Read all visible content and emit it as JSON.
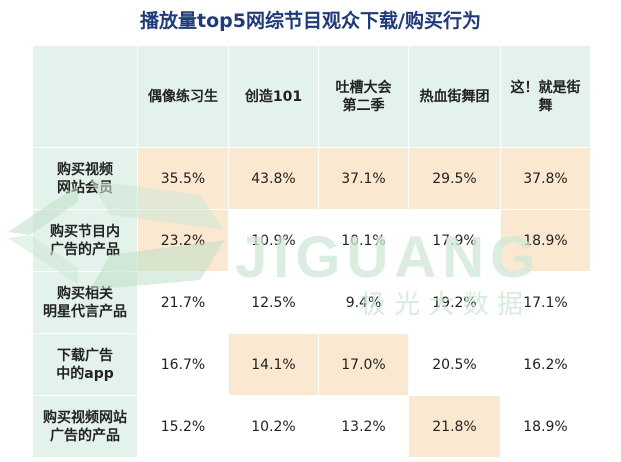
{
  "chart_data": {
    "type": "table",
    "title": "播放量top5网综节目观众下载/购买行为",
    "columns": [
      "偶像练习生",
      "创造101",
      "吐槽大会\n第二季",
      "热血街舞团",
      "这！就是街\n舞"
    ],
    "rows": [
      {
        "label": "购买视频\n网站会员",
        "values": [
          "35.5%",
          "43.8%",
          "37.1%",
          "29.5%",
          "37.8%"
        ],
        "highlight": [
          true,
          true,
          true,
          true,
          true
        ]
      },
      {
        "label": "购买节目内\n广告的产品",
        "values": [
          "23.2%",
          "10.9%",
          "10.1%",
          "17.9%",
          "18.9%"
        ],
        "highlight": [
          true,
          false,
          false,
          false,
          true
        ]
      },
      {
        "label": "购买相关\n明星代言产品",
        "values": [
          "21.7%",
          "12.5%",
          "9.4%",
          "19.2%",
          "17.1%"
        ],
        "highlight": [
          false,
          false,
          false,
          false,
          false
        ]
      },
      {
        "label": "下载广告\n中的app",
        "values": [
          "16.7%",
          "14.1%",
          "17.0%",
          "20.5%",
          "16.2%"
        ],
        "highlight": [
          false,
          true,
          true,
          false,
          false
        ]
      },
      {
        "label": "购买视频网站\n广告的产品",
        "values": [
          "15.2%",
          "10.2%",
          "13.2%",
          "21.8%",
          "18.9%"
        ],
        "highlight": [
          false,
          false,
          false,
          true,
          false
        ]
      }
    ]
  },
  "watermark": {
    "logo_text": "JIGUANG",
    "sub_text": "极 光 大 数 据"
  },
  "colors": {
    "header_bg": "#e3f2ea",
    "highlight_bg": "#fbe8d0",
    "title": "#1f3a78",
    "watermark": "#cfe8d6"
  }
}
